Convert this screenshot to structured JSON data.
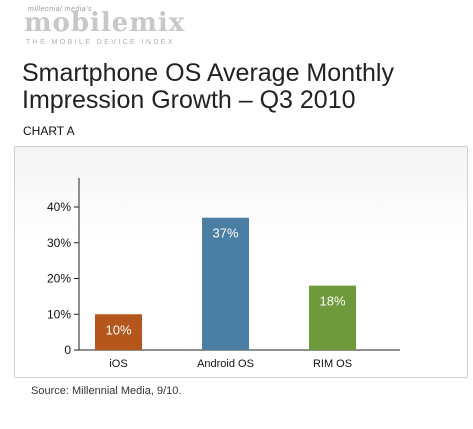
{
  "brand": {
    "tagline_small": "millennial media's",
    "logo": "mobilemix",
    "subtitle": "THE MOBILE DEVICE INDEX"
  },
  "title_line1": "Smartphone OS Average Monthly",
  "title_line2": "Impression Growth – Q3 2010",
  "chart_label": "CHART A",
  "source": "Source: Millennial Media, 9/10.",
  "chart_data": {
    "type": "bar",
    "categories": [
      "iOS",
      "Android OS",
      "RIM OS"
    ],
    "values": [
      10,
      37,
      18
    ],
    "value_labels": [
      "10%",
      "37%",
      "18%"
    ],
    "colors": [
      "#b5561d",
      "#4a7fa3",
      "#6e9a3b"
    ],
    "yticks": [
      "0",
      "10%",
      "20%",
      "30%",
      "40%"
    ],
    "ylim": [
      0,
      40
    ],
    "grid": false,
    "legend": "none"
  }
}
